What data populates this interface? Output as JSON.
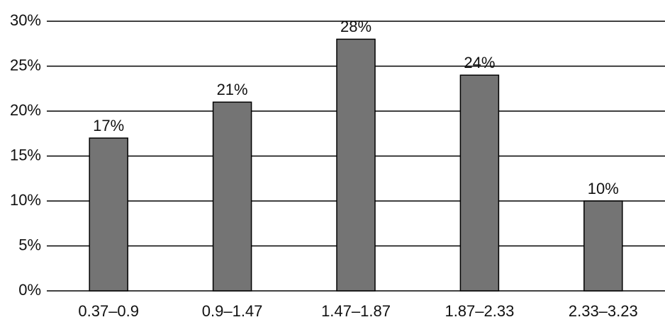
{
  "chart_data": {
    "type": "bar",
    "categories": [
      "0.37–0.9",
      "0.9–1.47",
      "1.47–1.87",
      "1.87–2.33",
      "2.33–3.23"
    ],
    "values": [
      17,
      21,
      28,
      24,
      10
    ],
    "value_labels": [
      "17%",
      "21%",
      "28%",
      "24%",
      "10%"
    ],
    "color": "#747474",
    "ylim": [
      0,
      30
    ],
    "yticks": [
      {
        "value": 0,
        "label": "0%"
      },
      {
        "value": 5,
        "label": "5%"
      },
      {
        "value": 10,
        "label": "10%"
      },
      {
        "value": 15,
        "label": "15%"
      },
      {
        "value": 20,
        "label": "20%"
      },
      {
        "value": 25,
        "label": "25%"
      },
      {
        "value": 30,
        "label": "30%"
      }
    ],
    "grid": true
  }
}
